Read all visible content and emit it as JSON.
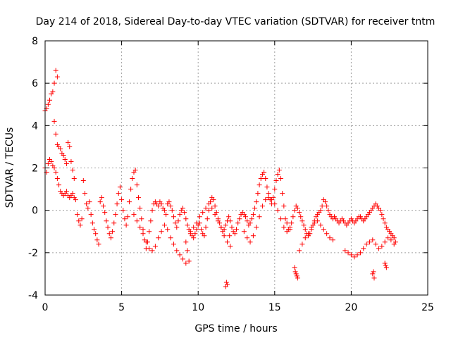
{
  "chart_data": {
    "type": "scatter",
    "title": "Day 214 of 2018, Sidereal Day-to-day VTEC variation (SDTVAR) for receiver tntm",
    "xlabel": "GPS time / hours",
    "ylabel": "SDTVAR / TECUs",
    "xlim": [
      0,
      25
    ],
    "ylim": [
      -4,
      8
    ],
    "xticks": [
      0,
      5,
      10,
      15,
      20,
      25
    ],
    "yticks": [
      -4,
      -2,
      0,
      2,
      4,
      6,
      8
    ],
    "xtick_labels": [
      "0",
      "5",
      "10",
      "15",
      "20",
      "25"
    ],
    "ytick_labels": [
      "-4",
      "-2",
      "0",
      "2",
      "4",
      "6",
      "8"
    ],
    "grid": true,
    "marker": "+",
    "series_color": "#ff0000",
    "axis_color": "#000000",
    "grid_color": "#a0a0a0",
    "series": [
      {
        "name": "SDTVAR",
        "x": [
          0.0,
          0.1,
          0.2,
          0.3,
          0.4,
          0.5,
          0.6,
          0.7,
          0.8,
          0.9,
          1.0,
          1.1,
          1.2,
          1.3,
          1.4,
          1.5,
          1.6,
          1.7,
          1.8,
          1.9,
          0.0,
          0.1,
          0.2,
          0.3,
          0.4,
          0.5,
          0.6,
          0.7,
          0.8,
          0.9,
          1.0,
          1.1,
          1.2,
          1.3,
          1.4,
          1.5,
          1.6,
          1.7,
          1.8,
          1.9,
          2.0,
          2.1,
          2.2,
          2.3,
          2.4,
          2.5,
          2.6,
          2.7,
          2.8,
          2.9,
          3.0,
          3.1,
          3.2,
          3.3,
          3.4,
          3.5,
          3.6,
          3.7,
          3.8,
          3.9,
          4.0,
          4.1,
          4.2,
          4.3,
          4.4,
          4.5,
          4.6,
          4.7,
          4.8,
          4.9,
          5.0,
          5.1,
          5.2,
          5.3,
          5.4,
          5.5,
          5.6,
          5.7,
          5.8,
          5.9,
          6.0,
          6.1,
          6.2,
          6.3,
          6.4,
          6.5,
          6.6,
          6.7,
          6.8,
          6.9,
          7.0,
          7.1,
          7.2,
          7.3,
          7.4,
          7.5,
          7.6,
          7.7,
          7.8,
          7.9,
          8.0,
          8.1,
          8.2,
          8.3,
          8.4,
          8.5,
          8.6,
          8.7,
          8.8,
          8.9,
          9.0,
          9.1,
          9.2,
          9.3,
          9.4,
          9.5,
          9.6,
          9.7,
          9.8,
          9.9,
          10.0,
          10.1,
          10.2,
          10.3,
          10.4,
          10.5,
          10.6,
          10.7,
          10.8,
          10.9,
          11.0,
          11.1,
          11.2,
          11.3,
          11.4,
          11.5,
          11.6,
          11.7,
          11.8,
          11.9,
          12.0,
          12.1,
          12.2,
          12.3,
          12.4,
          12.5,
          12.6,
          12.7,
          12.8,
          12.9,
          13.0,
          13.1,
          13.2,
          13.3,
          13.4,
          13.5,
          13.6,
          13.7,
          13.8,
          13.9,
          14.0,
          14.1,
          14.2,
          14.3,
          14.4,
          14.5,
          14.6,
          14.7,
          14.8,
          14.9,
          15.0,
          15.1,
          15.2,
          15.3,
          15.4,
          15.5,
          15.6,
          15.7,
          15.8,
          15.9,
          16.0,
          16.1,
          16.2,
          16.3,
          16.4,
          16.5,
          16.6,
          16.7,
          16.8,
          16.9,
          17.0,
          17.1,
          17.2,
          17.3,
          17.4,
          17.5,
          17.6,
          17.7,
          17.8,
          17.9,
          18.0,
          18.1,
          18.2,
          18.3,
          18.4,
          18.5,
          18.6,
          18.7,
          18.8,
          18.9,
          19.0,
          19.1,
          19.2,
          19.3,
          19.4,
          19.5,
          19.6,
          19.7,
          19.8,
          19.9,
          20.0,
          20.1,
          20.2,
          20.3,
          20.4,
          20.5,
          20.6,
          20.7,
          20.8,
          20.9,
          21.0,
          21.1,
          21.2,
          21.3,
          21.4,
          21.5,
          21.6,
          21.7,
          21.8,
          21.9,
          22.0,
          22.1,
          22.2,
          22.3,
          22.4,
          22.5,
          22.6,
          22.7,
          22.8,
          22.9,
          5.8,
          6.0,
          6.2,
          6.4,
          6.6,
          6.8,
          7.0,
          7.2,
          7.4,
          7.6,
          7.8,
          8.0,
          8.2,
          8.4,
          8.6,
          8.8,
          9.0,
          9.2,
          9.4,
          9.5,
          9.7,
          9.9,
          10.1,
          10.3,
          10.5,
          10.7,
          10.9,
          11.1,
          11.3,
          11.5,
          11.7,
          11.9,
          12.1,
          13.0,
          13.2,
          13.4,
          13.6,
          13.8,
          14.0,
          14.2,
          14.4,
          14.6,
          14.8,
          15.0,
          15.2,
          15.4,
          15.6,
          15.8,
          16.0,
          16.6,
          16.8,
          17.0,
          17.2,
          17.4,
          17.6,
          17.8,
          18.0,
          18.2,
          18.4,
          18.6,
          18.8,
          19.6,
          19.8,
          20.0,
          20.2,
          20.4,
          20.6,
          20.8,
          21.0,
          21.2,
          21.4,
          21.6,
          21.8,
          22.0,
          22.2,
          22.4,
          22.6,
          22.8,
          0.6,
          0.7,
          0.8,
          9.2,
          9.3,
          11.8,
          11.85,
          11.9,
          12.05,
          16.3,
          16.35,
          16.4,
          16.45,
          16.5,
          21.4,
          21.45,
          21.5,
          22.2,
          22.25,
          22.3
        ],
        "y": [
          4.7,
          4.8,
          5.0,
          5.2,
          5.5,
          5.6,
          4.2,
          3.6,
          3.1,
          3.0,
          2.9,
          2.7,
          2.6,
          2.4,
          2.2,
          3.2,
          3.0,
          2.3,
          1.9,
          1.5,
          2.0,
          1.8,
          2.2,
          2.4,
          2.3,
          2.1,
          2.0,
          1.8,
          1.5,
          1.2,
          0.9,
          0.8,
          0.7,
          0.8,
          0.9,
          0.7,
          0.6,
          0.7,
          0.8,
          0.6,
          0.5,
          -0.2,
          -0.5,
          -0.7,
          -0.4,
          1.4,
          0.8,
          0.3,
          0.1,
          0.4,
          -0.2,
          -0.6,
          -0.9,
          -1.1,
          -1.4,
          -1.6,
          0.4,
          0.6,
          0.2,
          -0.1,
          -0.5,
          -0.8,
          -1.1,
          -1.3,
          -1.0,
          -0.6,
          -0.2,
          0.3,
          0.8,
          1.1,
          0.5,
          0.0,
          -0.4,
          -0.7,
          -0.3,
          0.4,
          1.0,
          1.5,
          1.8,
          1.9,
          1.2,
          0.6,
          0.1,
          -0.4,
          -0.9,
          -1.4,
          -1.8,
          -1.5,
          -1.0,
          -0.5,
          0.0,
          0.3,
          0.4,
          0.3,
          0.2,
          0.4,
          0.3,
          0.1,
          0.0,
          -0.2,
          0.3,
          0.4,
          0.2,
          0.0,
          -0.3,
          -0.6,
          -0.8,
          -0.5,
          -0.2,
          0.0,
          0.1,
          -0.1,
          -0.4,
          -0.7,
          -0.9,
          -1.1,
          -1.2,
          -1.3,
          -1.1,
          -0.9,
          -0.7,
          -0.6,
          -0.9,
          -1.1,
          -1.2,
          -0.8,
          -0.4,
          0.0,
          0.4,
          0.6,
          0.5,
          0.2,
          -0.1,
          -0.4,
          -0.6,
          -0.8,
          -1.0,
          -0.9,
          -0.7,
          -0.5,
          -0.3,
          -0.5,
          -0.8,
          -1.0,
          -1.1,
          -0.9,
          -0.6,
          -0.4,
          -0.2,
          -0.1,
          -0.2,
          -0.3,
          -0.5,
          -0.7,
          -0.6,
          -0.4,
          -0.2,
          0.1,
          0.4,
          0.8,
          1.2,
          1.5,
          1.7,
          1.8,
          1.5,
          1.1,
          0.8,
          0.5,
          0.3,
          0.6,
          1.0,
          1.4,
          1.7,
          1.9,
          1.5,
          0.8,
          0.2,
          -0.4,
          -0.6,
          -0.9,
          -0.8,
          -0.6,
          -0.3,
          0.0,
          0.2,
          0.1,
          -0.1,
          -0.3,
          -0.5,
          -0.7,
          -0.9,
          -1.1,
          -1.2,
          -1.1,
          -0.9,
          -0.7,
          -0.5,
          -0.3,
          -0.2,
          -0.1,
          0.0,
          0.2,
          0.5,
          0.4,
          0.2,
          0.0,
          -0.2,
          -0.3,
          -0.4,
          -0.3,
          -0.4,
          -0.5,
          -0.6,
          -0.5,
          -0.4,
          -0.5,
          -0.6,
          -0.7,
          -0.6,
          -0.5,
          -0.4,
          -0.5,
          -0.6,
          -0.5,
          -0.4,
          -0.3,
          -0.3,
          -0.4,
          -0.5,
          -0.4,
          -0.3,
          -0.2,
          -0.1,
          0.0,
          0.1,
          0.2,
          0.3,
          0.2,
          0.1,
          0.0,
          -0.2,
          -0.4,
          -0.6,
          -0.8,
          -0.9,
          -1.0,
          -1.1,
          -1.2,
          -1.3,
          -1.5,
          -0.2,
          -0.5,
          -0.8,
          -1.1,
          -1.5,
          -1.8,
          -1.9,
          -1.7,
          -1.3,
          -1.0,
          -0.7,
          -0.9,
          -1.3,
          -1.6,
          -1.9,
          -2.1,
          -2.3,
          -2.5,
          -2.4,
          -1.0,
          -0.8,
          -0.6,
          -0.3,
          -0.1,
          0.1,
          0.3,
          0.1,
          -0.2,
          -0.5,
          -0.8,
          -1.2,
          -1.5,
          -1.7,
          -1.0,
          -1.3,
          -1.5,
          -1.2,
          -0.8,
          -0.3,
          0.2,
          0.5,
          0.6,
          0.5,
          0.3,
          0.0,
          -0.4,
          -0.8,
          -1.0,
          -0.9,
          -1.9,
          -1.6,
          -1.3,
          -1.1,
          -0.8,
          -0.6,
          -0.5,
          -0.7,
          -0.9,
          -1.1,
          -1.3,
          -1.4,
          -1.9,
          -2.0,
          -2.1,
          -2.2,
          -2.1,
          -2.0,
          -1.8,
          -1.6,
          -1.5,
          -1.4,
          -1.6,
          -1.8,
          -1.7,
          -1.5,
          -1.3,
          -1.4,
          -1.6,
          6.0,
          6.6,
          6.3,
          -1.5,
          -1.9,
          -3.6,
          -3.4,
          -3.5,
          -1.2,
          -2.7,
          -2.9,
          -3.0,
          -3.1,
          -3.2,
          -3.0,
          -2.9,
          -3.2,
          -2.5,
          -2.6,
          -2.7
        ]
      }
    ]
  }
}
